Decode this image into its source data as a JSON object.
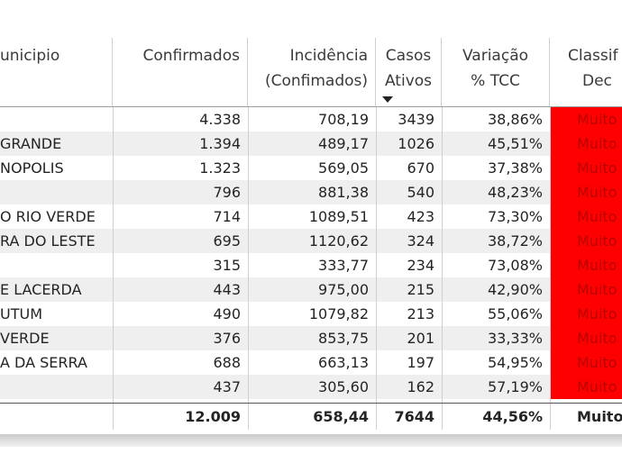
{
  "headers": {
    "municipio": "unicipio",
    "confirmados": "Confirmados",
    "incidencia_l1": "Incidência",
    "incidencia_l2": "(Confimados)",
    "casos_l1": "Casos",
    "casos_l2": "Ativos",
    "variacao_l1": "Variação",
    "variacao_l2": "% TCC",
    "classif_l1": "Classif",
    "classif_l2": "Dec"
  },
  "rows": [
    {
      "municipio": "",
      "confirmados": "4.338",
      "incidencia": "708,19",
      "casos": "3439",
      "variacao": "38,86%",
      "classif": "Muito"
    },
    {
      "municipio": "GRANDE",
      "confirmados": "1.394",
      "incidencia": "489,17",
      "casos": "1026",
      "variacao": "45,51%",
      "classif": "Muito"
    },
    {
      "municipio": "NOPOLIS",
      "confirmados": "1.323",
      "incidencia": "569,05",
      "casos": "670",
      "variacao": "37,38%",
      "classif": "Muito"
    },
    {
      "municipio": "",
      "confirmados": "796",
      "incidencia": "881,38",
      "casos": "540",
      "variacao": "48,23%",
      "classif": "Muito"
    },
    {
      "municipio": "O RIO VERDE",
      "confirmados": "714",
      "incidencia": "1089,51",
      "casos": "423",
      "variacao": "73,30%",
      "classif": "Muito"
    },
    {
      "municipio": "RA DO LESTE",
      "confirmados": "695",
      "incidencia": "1120,62",
      "casos": "324",
      "variacao": "38,72%",
      "classif": "Muito"
    },
    {
      "municipio": "",
      "confirmados": "315",
      "incidencia": "333,77",
      "casos": "234",
      "variacao": "73,08%",
      "classif": "Muito"
    },
    {
      "municipio": "E LACERDA",
      "confirmados": "443",
      "incidencia": "975,00",
      "casos": "215",
      "variacao": "42,90%",
      "classif": "Muito"
    },
    {
      "municipio": "UTUM",
      "confirmados": "490",
      "incidencia": "1079,82",
      "casos": "213",
      "variacao": "55,06%",
      "classif": "Muito"
    },
    {
      "municipio": "VERDE",
      "confirmados": "376",
      "incidencia": "853,75",
      "casos": "201",
      "variacao": "33,33%",
      "classif": "Muito"
    },
    {
      "municipio": "A DA SERRA",
      "confirmados": "688",
      "incidencia": "663,13",
      "casos": "197",
      "variacao": "54,95%",
      "classif": "Muito"
    },
    {
      "municipio": "",
      "confirmados": "437",
      "incidencia": "305,60",
      "casos": "162",
      "variacao": "57,19%",
      "classif": "Muito"
    }
  ],
  "totals": {
    "confirmados": "12.009",
    "incidencia": "658,44",
    "casos": "7644",
    "variacao": "44,56%",
    "classif": "Muito"
  },
  "colors": {
    "high_risk": "#ff0000",
    "row_alt": "#efefef"
  }
}
